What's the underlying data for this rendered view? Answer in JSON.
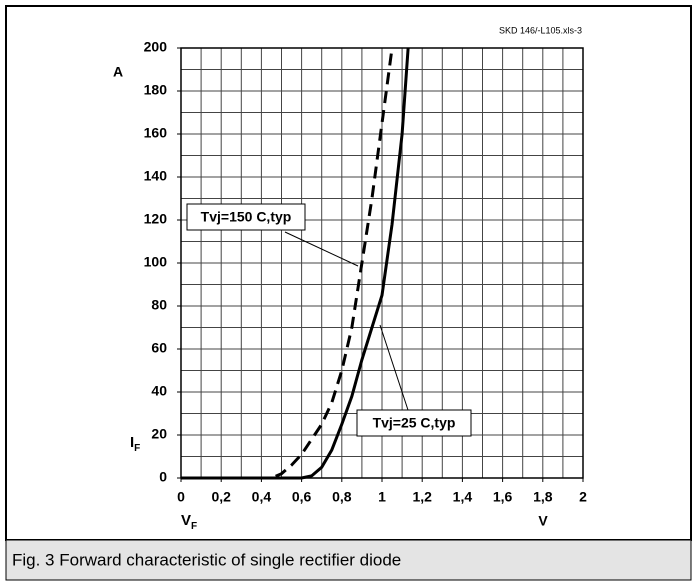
{
  "chart_data": {
    "type": "line",
    "note": "SKD 146/-L105.xls-3",
    "caption": "Fig. 3 Forward characteristic of single rectifier diode",
    "ylabel": {
      "symbol": "I",
      "subscript": "F",
      "unit": "A"
    },
    "xlabel": {
      "symbol": "V",
      "subscript": "F",
      "unit": "V"
    },
    "xlim": [
      0,
      2
    ],
    "ylim": [
      0,
      200
    ],
    "xticks": [
      0,
      {
        "value": 0.2,
        "label": "0,2"
      },
      {
        "value": 0.4,
        "label": "0,4"
      },
      {
        "value": 0.6,
        "label": "0,6"
      },
      {
        "value": 0.8,
        "label": "0,8"
      },
      1,
      {
        "value": 1.2,
        "label": "1,2"
      },
      {
        "value": 1.4,
        "label": "1,4"
      },
      {
        "value": 1.6,
        "label": "1,6"
      },
      {
        "value": 1.8,
        "label": "1,8"
      },
      2
    ],
    "yticks": [
      0,
      20,
      40,
      60,
      80,
      100,
      120,
      140,
      160,
      180,
      200
    ],
    "grid": true,
    "xgrid_step": 0.1,
    "ygrid_step": 10,
    "series": [
      {
        "name": "Tvj=150 C,typ",
        "color": "#000000",
        "dash": true,
        "x": [
          0,
          0.45,
          0.5,
          0.55,
          0.6,
          0.65,
          0.7,
          0.75,
          0.8,
          0.85,
          0.9,
          0.95,
          1.0,
          1.05
        ],
        "values": [
          0,
          0,
          2,
          6,
          11,
          18,
          25,
          35,
          50,
          70,
          100,
          130,
          165,
          200
        ]
      },
      {
        "name": "Tvj=25 C,typ",
        "color": "#000000",
        "dash": false,
        "x": [
          0,
          0.6,
          0.65,
          0.7,
          0.75,
          0.8,
          0.85,
          0.9,
          0.95,
          1.0,
          1.05,
          1.1,
          1.13
        ],
        "values": [
          0,
          0,
          1,
          5,
          13,
          25,
          38,
          55,
          70,
          85,
          118,
          160,
          200
        ]
      }
    ]
  }
}
